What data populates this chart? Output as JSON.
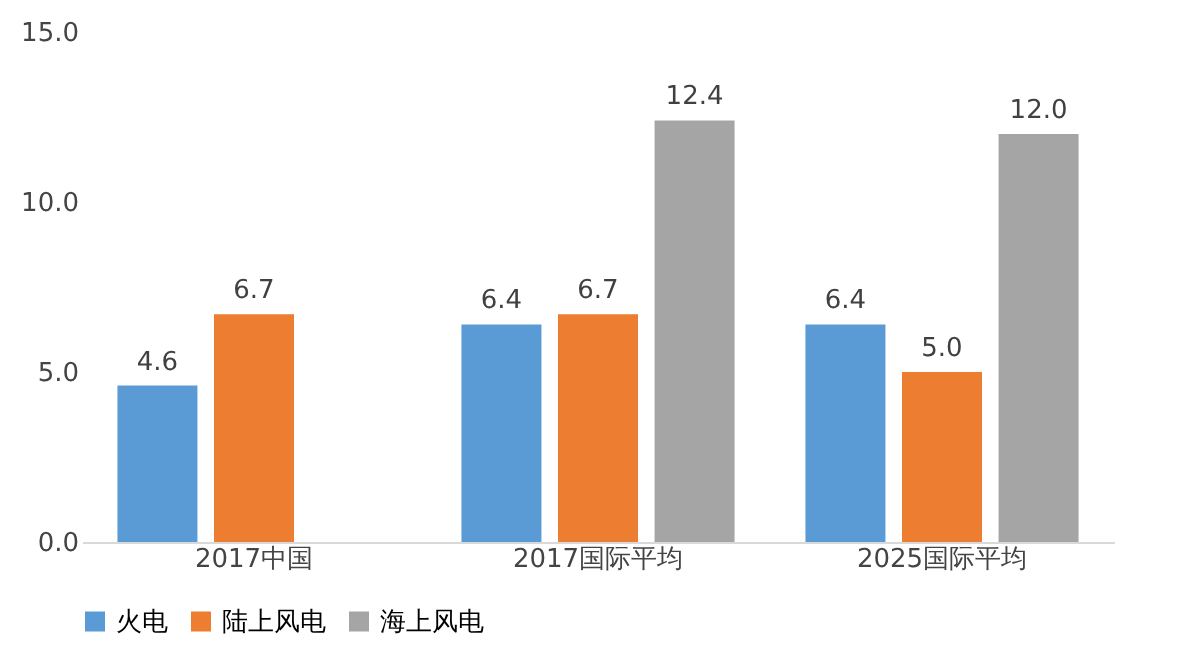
{
  "chart_data": {
    "type": "bar",
    "categories": [
      "2017中国",
      "2017国际平均",
      "2025国际平均"
    ],
    "series": [
      {
        "name": "火电",
        "color": "#5b9bd5",
        "values": [
          4.6,
          6.4,
          6.4
        ],
        "value_labels": [
          "4.6",
          "6.4",
          "6.4"
        ]
      },
      {
        "name": "陆上风电",
        "color": "#ed7d31",
        "values": [
          6.7,
          6.7,
          5.0
        ],
        "value_labels": [
          "6.7",
          "6.7",
          "5.0"
        ]
      },
      {
        "name": "海上风电",
        "color": "#a5a5a5",
        "values": [
          null,
          12.4,
          12.0
        ],
        "value_labels": [
          null,
          "12.4",
          "12.0"
        ]
      }
    ],
    "ylim": [
      0,
      15
    ],
    "yticks": [
      {
        "value": 0,
        "label": "0.0"
      },
      {
        "value": 5,
        "label": "5.0"
      },
      {
        "value": 10,
        "label": "10.0"
      },
      {
        "value": 15,
        "label": "15.0"
      }
    ],
    "grid": false,
    "legend": "bottom"
  }
}
